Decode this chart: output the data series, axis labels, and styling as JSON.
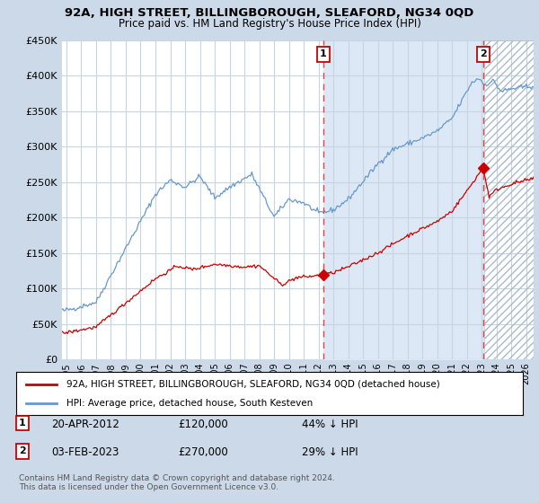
{
  "title": "92A, HIGH STREET, BILLINGBOROUGH, SLEAFORD, NG34 0QD",
  "subtitle": "Price paid vs. HM Land Registry's House Price Index (HPI)",
  "legend_red": "92A, HIGH STREET, BILLINGBOROUGH, SLEAFORD, NG34 0QD (detached house)",
  "legend_blue": "HPI: Average price, detached house, South Kesteven",
  "annotation1_label": "1",
  "annotation1_date": "20-APR-2012",
  "annotation1_price": "£120,000",
  "annotation1_hpi": "44% ↓ HPI",
  "annotation2_label": "2",
  "annotation2_date": "03-FEB-2023",
  "annotation2_price": "£270,000",
  "annotation2_hpi": "29% ↓ HPI",
  "footer": "Contains HM Land Registry data © Crown copyright and database right 2024.\nThis data is licensed under the Open Government Licence v3.0.",
  "bg_color": "#ccd9e8",
  "plot_bg": "#ffffff",
  "shade_color": "#dce8f5",
  "grid_color": "#c8d4e0",
  "red_color": "#cc0000",
  "blue_color": "#6699cc",
  "marker1_x_year": 2012.3,
  "marker1_y": 120000,
  "marker2_x_year": 2023.09,
  "marker2_y": 270000,
  "vline1_year": 2012.3,
  "vline2_year": 2023.09,
  "ylim": [
    0,
    450000
  ],
  "xlim_start": 1994.7,
  "xlim_end": 2026.5,
  "yticks": [
    0,
    50000,
    100000,
    150000,
    200000,
    250000,
    300000,
    350000,
    400000,
    450000
  ],
  "xtick_start": 1995,
  "xtick_end": 2026
}
